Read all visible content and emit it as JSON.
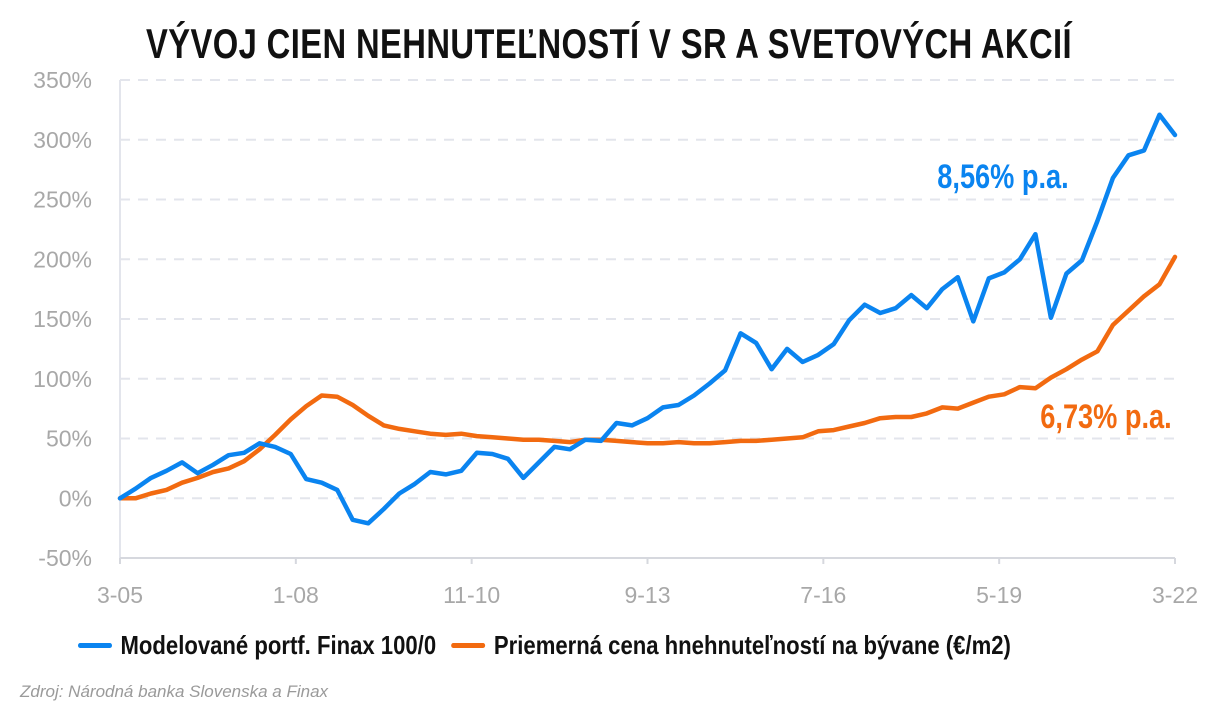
{
  "chart_data": {
    "type": "line",
    "title": "VÝVOJ CIEN NEHNUTEĽNOSTÍ V SR A SVETOVÝCH AKCIÍ",
    "xlabel": "",
    "ylabel": "",
    "x_tick_labels": [
      "3-05",
      "1-08",
      "11-10",
      "9-13",
      "7-16",
      "5-19",
      "3-22"
    ],
    "x_range": [
      "3-05",
      "3-22"
    ],
    "x_frequency": "quarterly",
    "y_ticks": [
      "-50%",
      "0%",
      "50%",
      "100%",
      "150%",
      "200%",
      "250%",
      "300%",
      "350%"
    ],
    "ylim": [
      -50,
      350
    ],
    "grid": "horizontal dashed",
    "legend_position": "bottom",
    "series": [
      {
        "name": "Modelované portf. Finax 100/0",
        "color": "#0a84f0",
        "values": [
          0,
          8,
          17,
          23,
          30,
          21,
          28,
          36,
          38,
          46,
          43,
          37,
          16,
          13,
          7,
          -18,
          -21,
          -9,
          4,
          12,
          22,
          20,
          23,
          38,
          37,
          33,
          17,
          30,
          43,
          41,
          49,
          48,
          63,
          61,
          67,
          76,
          78,
          86,
          96,
          107,
          138,
          130,
          108,
          125,
          114,
          120,
          129,
          149,
          162,
          155,
          159,
          170,
          159,
          175,
          185,
          148,
          184,
          189,
          200,
          221,
          151,
          188,
          199,
          232,
          268,
          287,
          291,
          321,
          304
        ],
        "annotation": "8,56% p.a."
      },
      {
        "name": "Priemerná cena hnehnuteľností na bývane (€/m2)",
        "color": "#f26a10",
        "values": [
          0,
          0,
          4,
          7,
          13,
          17,
          22,
          25,
          31,
          41,
          53,
          66,
          77,
          86,
          85,
          78,
          69,
          61,
          58,
          56,
          54,
          53,
          54,
          52,
          51,
          50,
          49,
          49,
          48,
          47,
          49,
          49,
          48,
          47,
          46,
          46,
          47,
          46,
          46,
          47,
          48,
          48,
          49,
          50,
          51,
          56,
          57,
          60,
          63,
          67,
          68,
          68,
          71,
          76,
          75,
          80,
          85,
          87,
          93,
          92,
          101,
          108,
          116,
          123,
          145,
          157,
          169,
          179,
          202
        ],
        "annotation": "6,73% p.a."
      }
    ]
  },
  "source": "Zdroj: Národná banka Slovenska a Finax"
}
